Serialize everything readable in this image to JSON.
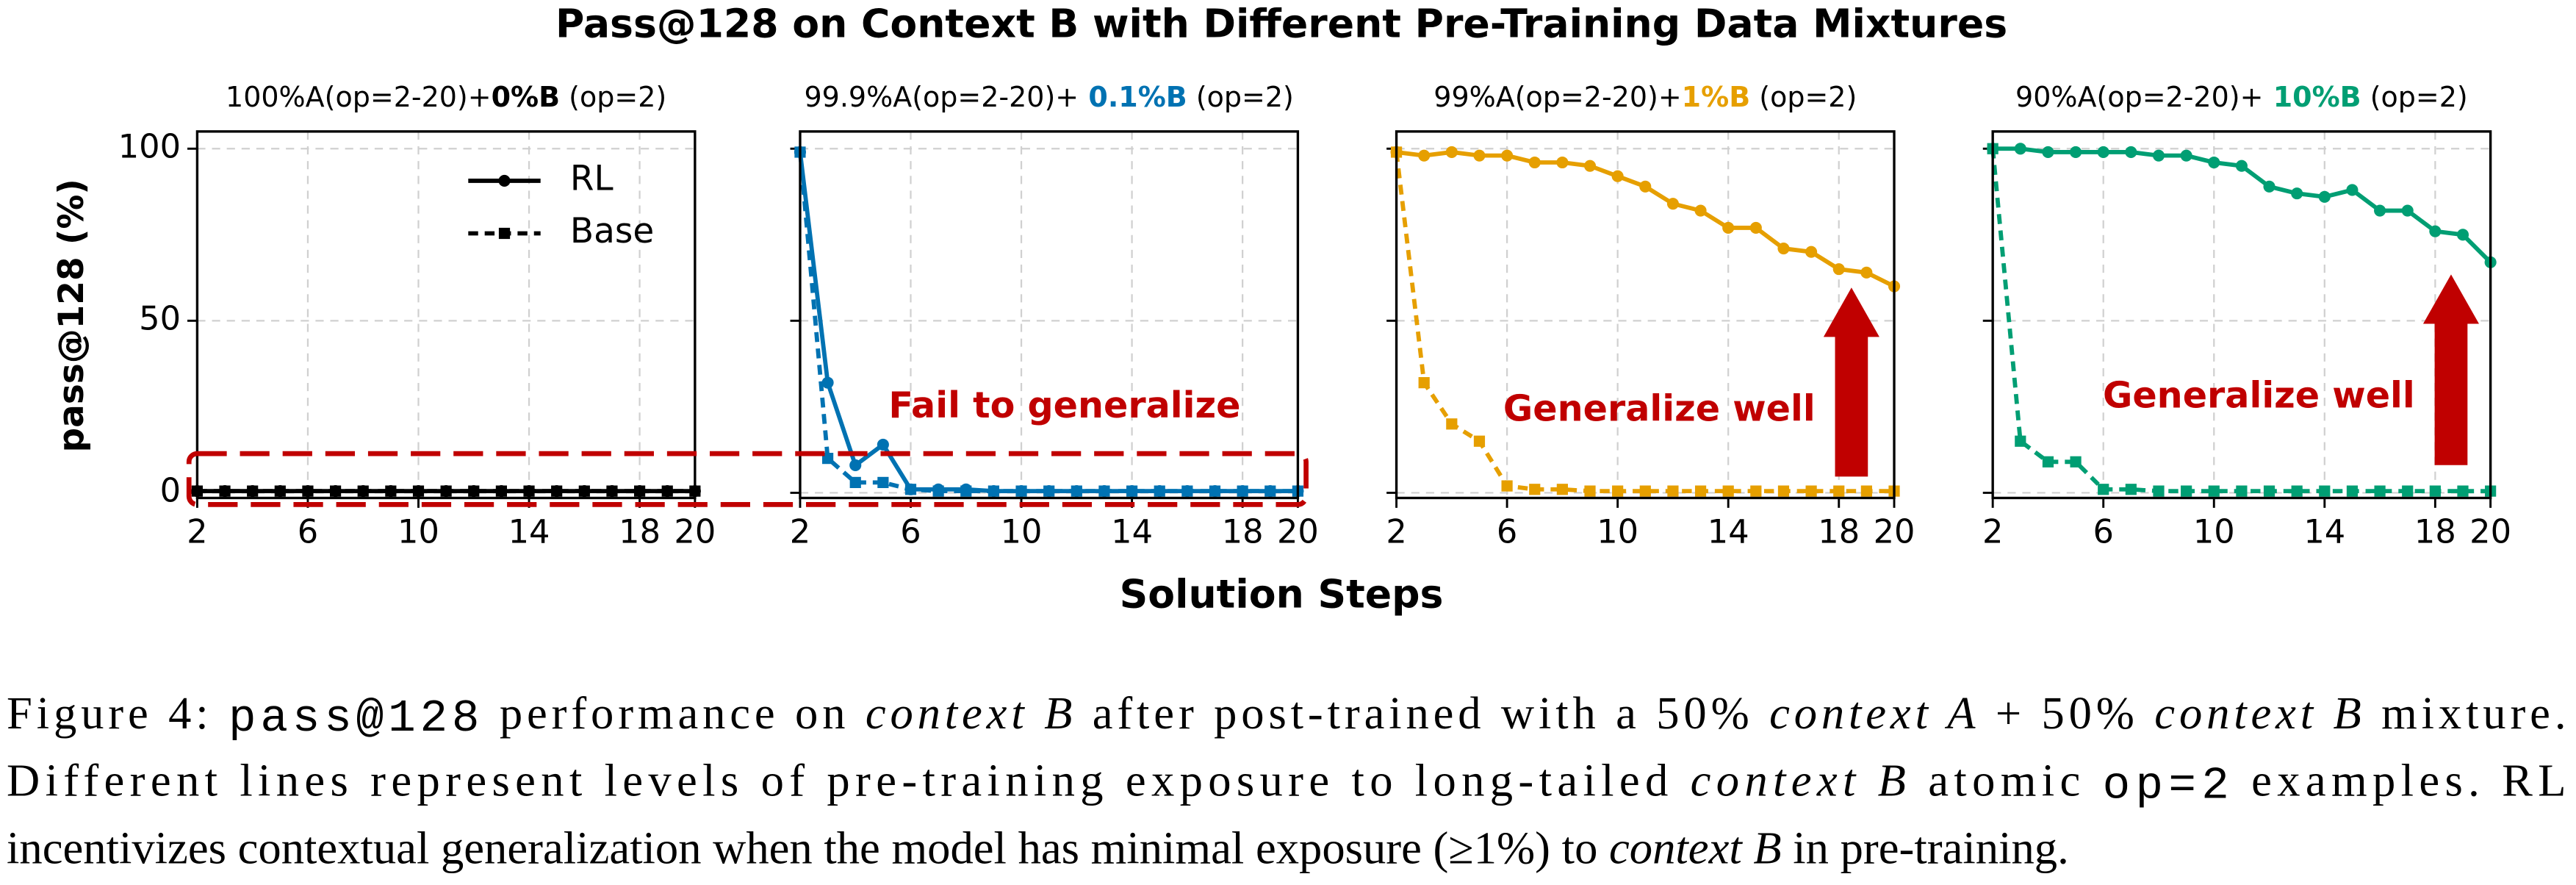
{
  "title": "Pass@128 on Context B with Different Pre-Training Data Mixtures",
  "ylabel": "pass@128 (%)",
  "xlabel": "Solution Steps",
  "chart_data": [
    {
      "type": "line",
      "title_parts": [
        "100%A(op=2-20)+",
        "0%B",
        " (op=2)"
      ],
      "highlight_color": "#000000",
      "x": [
        2,
        3,
        4,
        5,
        6,
        7,
        8,
        9,
        10,
        11,
        12,
        13,
        14,
        15,
        16,
        17,
        18,
        19,
        20
      ],
      "xlim": [
        2,
        20
      ],
      "xticks": [
        2,
        6,
        10,
        14,
        18,
        20
      ],
      "ylim": [
        -1.5,
        105
      ],
      "yticks": [
        0,
        50,
        100
      ],
      "ytick_labels": true,
      "grid": true,
      "legend": "upper right",
      "series": [
        {
          "name": "RL",
          "color": "#000000",
          "style": "solid",
          "marker": "circle",
          "values": [
            0.5,
            0.5,
            0.5,
            0.5,
            0.5,
            0.5,
            0.5,
            0.5,
            0.5,
            0.5,
            0.5,
            0.5,
            0.5,
            0.5,
            0.5,
            0.5,
            0.5,
            0.5,
            0.5
          ]
        },
        {
          "name": "Base",
          "color": "#000000",
          "style": "dashed",
          "marker": "square",
          "values": [
            0.5,
            0.5,
            0.5,
            0.5,
            0.5,
            0.5,
            0.5,
            0.5,
            0.5,
            0.5,
            0.5,
            0.5,
            0.5,
            0.5,
            0.5,
            0.5,
            0.5,
            0.5,
            0.5
          ]
        }
      ]
    },
    {
      "type": "line",
      "title_parts": [
        "99.9%A(op=2-20)+",
        " 0.1%B",
        " (op=2)"
      ],
      "highlight_color": "#0072B2",
      "x": [
        2,
        3,
        4,
        5,
        6,
        7,
        8,
        9,
        10,
        11,
        12,
        13,
        14,
        15,
        16,
        17,
        18,
        19,
        20
      ],
      "xlim": [
        2,
        20
      ],
      "xticks": [
        2,
        6,
        10,
        14,
        18,
        20
      ],
      "ylim": [
        -1.5,
        105
      ],
      "yticks": [
        0,
        50,
        100
      ],
      "ytick_labels": false,
      "grid": true,
      "annotation": "Fail to generalize",
      "series": [
        {
          "name": "RL",
          "color": "#0072B2",
          "style": "solid",
          "marker": "circle",
          "values": [
            99,
            32,
            8,
            14,
            1,
            1,
            1,
            0.5,
            0.5,
            0.5,
            0.5,
            0.5,
            0.5,
            0.5,
            0.5,
            0.5,
            0.5,
            0.5,
            0.5
          ]
        },
        {
          "name": "Base",
          "color": "#0072B2",
          "style": "dashed",
          "marker": "square",
          "values": [
            99,
            10,
            3,
            3,
            1,
            0.5,
            0.5,
            0.5,
            0.5,
            0.5,
            0.5,
            0.5,
            0.5,
            0.5,
            0.5,
            0.5,
            0.5,
            0.5,
            0.5
          ]
        }
      ]
    },
    {
      "type": "line",
      "title_parts": [
        "99%A(op=2-20)+",
        "1%B",
        " (op=2)"
      ],
      "highlight_color": "#E69F00",
      "x": [
        2,
        3,
        4,
        5,
        6,
        7,
        8,
        9,
        10,
        11,
        12,
        13,
        14,
        15,
        16,
        17,
        18,
        19,
        20
      ],
      "xlim": [
        2,
        20
      ],
      "xticks": [
        2,
        6,
        10,
        14,
        18,
        20
      ],
      "ylim": [
        -1.5,
        105
      ],
      "yticks": [
        0,
        50,
        100
      ],
      "ytick_labels": false,
      "grid": true,
      "annotation": "Generalize well",
      "series": [
        {
          "name": "RL",
          "color": "#E69F00",
          "style": "solid",
          "marker": "circle",
          "values": [
            99,
            98,
            99,
            98,
            98,
            96,
            96,
            95,
            92,
            89,
            84,
            82,
            77,
            77,
            71,
            70,
            65,
            64,
            60
          ]
        },
        {
          "name": "Base",
          "color": "#E69F00",
          "style": "dashed",
          "marker": "square",
          "values": [
            99,
            32,
            20,
            15,
            2,
            1,
            1,
            0.5,
            0.5,
            0.5,
            0.5,
            0.5,
            0.5,
            0.5,
            0.5,
            0.5,
            0.5,
            0.5,
            0.5
          ]
        }
      ]
    },
    {
      "type": "line",
      "title_parts": [
        "90%A(op=2-20)+",
        " 10%B",
        " (op=2)"
      ],
      "highlight_color": "#009E73",
      "x": [
        2,
        3,
        4,
        5,
        6,
        7,
        8,
        9,
        10,
        11,
        12,
        13,
        14,
        15,
        16,
        17,
        18,
        19,
        20
      ],
      "xlim": [
        2,
        20
      ],
      "xticks": [
        2,
        6,
        10,
        14,
        18,
        20
      ],
      "ylim": [
        -1.5,
        105
      ],
      "yticks": [
        0,
        50,
        100
      ],
      "ytick_labels": false,
      "grid": true,
      "annotation": "Generalize well",
      "series": [
        {
          "name": "RL",
          "color": "#009E73",
          "style": "solid",
          "marker": "circle",
          "values": [
            100,
            100,
            99,
            99,
            99,
            99,
            98,
            98,
            96,
            95,
            89,
            87,
            86,
            88,
            82,
            82,
            76,
            75,
            67
          ]
        },
        {
          "name": "Base",
          "color": "#009E73",
          "style": "dashed",
          "marker": "square",
          "values": [
            100,
            15,
            9,
            9,
            1,
            1,
            0.5,
            0.5,
            0.5,
            0.5,
            0.5,
            0.5,
            0.5,
            0.5,
            0.5,
            0.5,
            0.5,
            0.5,
            0.5
          ]
        }
      ]
    }
  ],
  "caption": [
    [
      {
        "text": "Figure 4: ",
        "style": "normal"
      },
      {
        "text": "pass@128",
        "style": "mono"
      },
      {
        "text": " performance on ",
        "style": "normal"
      },
      {
        "text": "context B",
        "style": "italic"
      },
      {
        "text": " after post-trained with a 50% ",
        "style": "normal"
      },
      {
        "text": "context A",
        "style": "italic"
      },
      {
        "text": " + 50% ",
        "style": "normal"
      },
      {
        "text": "context B",
        "style": "italic"
      },
      {
        "text": " mixture.",
        "style": "normal"
      }
    ],
    [
      {
        "text": "Different lines represent levels of pre-training exposure to long-tailed ",
        "style": "normal"
      },
      {
        "text": "context B",
        "style": "italic"
      },
      {
        "text": " atomic ",
        "style": "normal"
      },
      {
        "text": "op=2",
        "style": "mono"
      },
      {
        "text": " examples.  RL",
        "style": "normal"
      }
    ],
    [
      {
        "text": "incentivizes contextual generalization when the model has minimal exposure (≥1%) to ",
        "style": "normal"
      },
      {
        "text": "context B",
        "style": "italic"
      },
      {
        "text": " in pre-training.",
        "style": "normal"
      }
    ]
  ]
}
